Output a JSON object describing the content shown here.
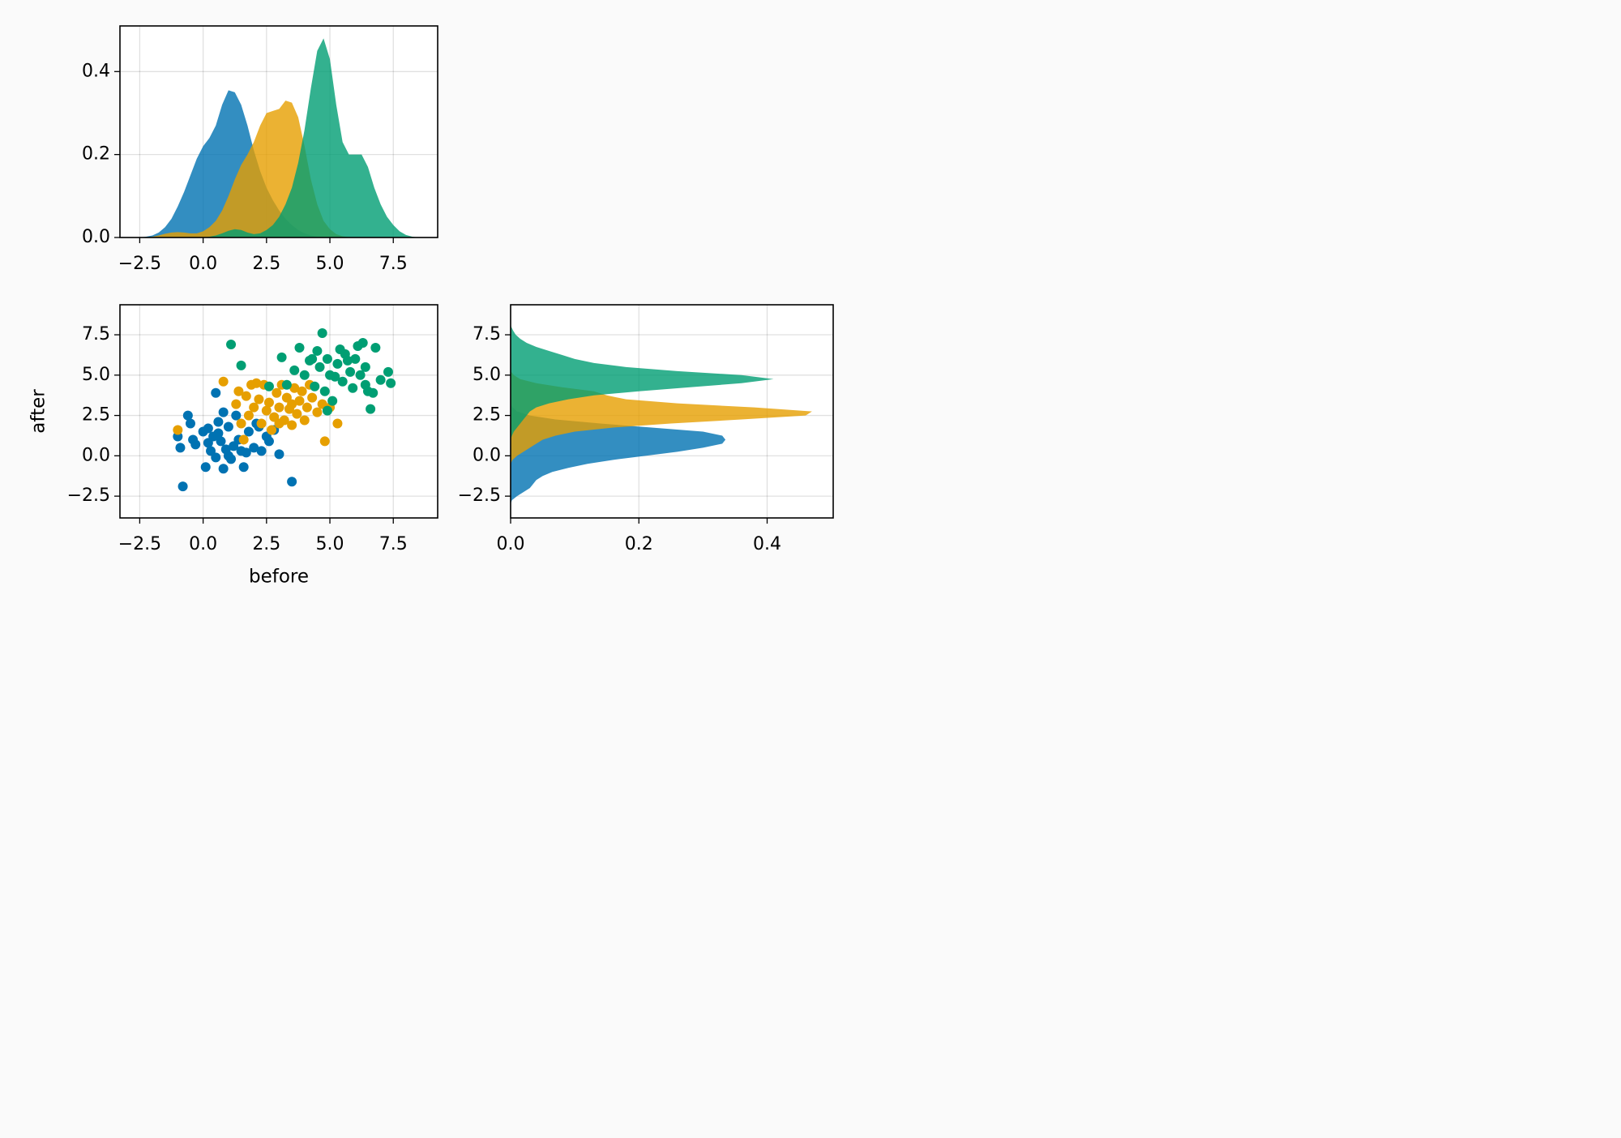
{
  "chart_data": [
    {
      "type": "density",
      "x": [
        -3,
        -2.75,
        -2.5,
        -2.25,
        -2,
        -1.75,
        -1.5,
        -1.25,
        -1,
        -0.75,
        -0.5,
        -0.25,
        0,
        0.25,
        0.5,
        0.75,
        1,
        1.25,
        1.5,
        1.75,
        2,
        2.25,
        2.5,
        2.75,
        3,
        3.25,
        3.5,
        3.75,
        4,
        4.25,
        4.5,
        4.75,
        5,
        5.25,
        5.5,
        5.75,
        6,
        6.25,
        6.5,
        6.75,
        7,
        7.25,
        7.5,
        7.75,
        8,
        8.25,
        8.5,
        8.75,
        9
      ],
      "series": [
        {
          "color": "#0072b2",
          "values": [
            0,
            0,
            0,
            0.002,
            0.005,
            0.012,
            0.025,
            0.045,
            0.075,
            0.11,
            0.15,
            0.19,
            0.22,
            0.24,
            0.27,
            0.32,
            0.355,
            0.35,
            0.32,
            0.27,
            0.21,
            0.16,
            0.12,
            0.09,
            0.065,
            0.045,
            0.03,
            0.018,
            0.01,
            0.005,
            0.002,
            0,
            0,
            0,
            0,
            0,
            0,
            0,
            0,
            0,
            0,
            0,
            0,
            0,
            0,
            0,
            0,
            0,
            0
          ]
        },
        {
          "color": "#e69f00",
          "values": [
            0,
            0,
            0,
            0,
            0.002,
            0.005,
            0.009,
            0.012,
            0.013,
            0.012,
            0.01,
            0.01,
            0.015,
            0.025,
            0.04,
            0.065,
            0.1,
            0.14,
            0.175,
            0.2,
            0.23,
            0.27,
            0.3,
            0.305,
            0.31,
            0.33,
            0.325,
            0.29,
            0.22,
            0.14,
            0.08,
            0.04,
            0.02,
            0.008,
            0.003,
            0.001,
            0,
            0,
            0,
            0,
            0,
            0,
            0,
            0,
            0,
            0,
            0,
            0,
            0
          ]
        },
        {
          "color": "#009e73",
          "values": [
            0,
            0,
            0,
            0,
            0,
            0,
            0,
            0,
            0,
            0,
            0,
            0,
            0,
            0.002,
            0.005,
            0.01,
            0.016,
            0.02,
            0.018,
            0.012,
            0.008,
            0.01,
            0.018,
            0.03,
            0.05,
            0.08,
            0.12,
            0.18,
            0.26,
            0.36,
            0.45,
            0.48,
            0.43,
            0.32,
            0.23,
            0.2,
            0.2,
            0.2,
            0.17,
            0.12,
            0.08,
            0.05,
            0.03,
            0.015,
            0.006,
            0.002,
            0,
            0,
            0
          ]
        }
      ],
      "xlim": [
        -3.28,
        9.25
      ],
      "ylim": [
        0,
        0.51
      ],
      "xticks": [
        {
          "value": -2.5,
          "label": "−2.5"
        },
        {
          "value": 0,
          "label": "0.0"
        },
        2.5,
        {
          "value": 5,
          "label": "5.0"
        },
        7.5
      ],
      "yticks": [
        {
          "value": 0,
          "label": "0.0"
        },
        0.2,
        0.4
      ],
      "grid": true
    },
    {
      "type": "scatter",
      "xlabel": "before",
      "ylabel": "after",
      "series": [
        {
          "color": "#0072b2",
          "x": [
            -1.0,
            -0.9,
            -0.6,
            -0.5,
            -0.3,
            0,
            0.2,
            0.3,
            0.4,
            0.5,
            0.6,
            0.7,
            0.8,
            0.9,
            1,
            1.1,
            1.2,
            1.3,
            1.4,
            1.6,
            1.7,
            1.8,
            2.0,
            2.1,
            2.3,
            2.5,
            2.6,
            2.8,
            3.0,
            3.5,
            -0.8,
            0.1,
            0.2,
            0.6,
            1.0,
            0.5,
            1.5,
            2.2,
            0.8,
            -0.4
          ],
          "y": [
            1.2,
            0.5,
            2.5,
            2.0,
            0.7,
            1.5,
            1.7,
            0.3,
            1.2,
            -0.1,
            2.1,
            0.9,
            -0.8,
            0.4,
            1.8,
            -0.2,
            0.6,
            2.5,
            1.0,
            -0.7,
            0.2,
            1.5,
            0.5,
            2.0,
            0.3,
            1.2,
            0.9,
            1.6,
            0.1,
            -1.6,
            -1.9,
            -0.7,
            0.8,
            1.4,
            0.0,
            3.9,
            0.3,
            1.8,
            2.7,
            1.0
          ]
        },
        {
          "color": "#e69f00",
          "x": [
            -1.0,
            0.8,
            1.3,
            1.4,
            1.6,
            1.8,
            1.9,
            2.0,
            2.2,
            2.3,
            2.4,
            2.5,
            2.6,
            2.8,
            2.9,
            3.0,
            3.1,
            3.2,
            3.3,
            3.4,
            3.5,
            3.6,
            3.7,
            3.8,
            3.9,
            4.0,
            4.1,
            4.3,
            4.5,
            4.7,
            4.8,
            5.0,
            5.3,
            1.5,
            2.7,
            3.5,
            4.2,
            2.1,
            1.7,
            3.0
          ],
          "y": [
            1.6,
            4.6,
            3.2,
            4.0,
            1.0,
            2.5,
            4.4,
            3.0,
            3.5,
            2.0,
            4.4,
            2.8,
            3.3,
            2.4,
            3.9,
            3.0,
            4.4,
            2.2,
            3.6,
            2.9,
            3.2,
            4.2,
            2.6,
            3.4,
            4.0,
            2.2,
            3.0,
            3.6,
            2.7,
            3.2,
            0.9,
            3.0,
            2.0,
            2.0,
            1.6,
            1.9,
            4.4,
            4.5,
            3.7,
            2.0
          ]
        },
        {
          "color": "#009e73",
          "x": [
            1.1,
            1.5,
            2.6,
            3.1,
            3.3,
            3.6,
            3.8,
            4.0,
            4.2,
            4.4,
            4.5,
            4.6,
            4.7,
            4.8,
            4.9,
            5.0,
            5.1,
            5.3,
            5.5,
            5.6,
            5.8,
            5.9,
            6.0,
            6.1,
            6.2,
            6.3,
            6.4,
            6.5,
            6.6,
            6.7,
            6.8,
            7.0,
            7.3,
            7.4,
            4.9,
            5.2,
            5.7,
            6.4,
            4.3,
            5.4
          ],
          "y": [
            6.9,
            5.6,
            4.3,
            6.1,
            4.4,
            5.3,
            6.7,
            5.0,
            5.9,
            4.3,
            6.5,
            5.5,
            7.6,
            4.0,
            6.0,
            5.0,
            3.4,
            5.7,
            4.6,
            6.3,
            5.2,
            4.2,
            6.0,
            6.8,
            5.0,
            7.0,
            5.5,
            4.0,
            2.9,
            3.9,
            6.7,
            4.7,
            5.2,
            4.5,
            2.8,
            4.9,
            5.9,
            4.4,
            6.0,
            6.6
          ]
        }
      ],
      "xlim": [
        -3.28,
        9.25
      ],
      "ylim": [
        -3.85,
        9.36
      ],
      "xticks": [
        {
          "value": -2.5,
          "label": "−2.5"
        },
        {
          "value": 0,
          "label": "0.0"
        },
        2.5,
        {
          "value": 5,
          "label": "5.0"
        },
        7.5
      ],
      "yticks": [
        {
          "value": -2.5,
          "label": "−2.5"
        },
        {
          "value": 0,
          "label": "0.0"
        },
        2.5,
        {
          "value": 5,
          "label": "5.0"
        },
        7.5
      ],
      "grid": true
    },
    {
      "type": "density_h",
      "y": [
        -3,
        -2.75,
        -2.5,
        -2.25,
        -2,
        -1.75,
        -1.5,
        -1.25,
        -1,
        -0.75,
        -0.5,
        -0.25,
        0,
        0.25,
        0.5,
        0.75,
        1,
        1.25,
        1.5,
        1.75,
        2,
        2.25,
        2.5,
        2.75,
        3,
        3.25,
        3.5,
        3.75,
        4,
        4.25,
        4.5,
        4.75,
        5,
        5.25,
        5.5,
        5.75,
        6,
        6.25,
        6.5,
        6.75,
        7,
        7.25,
        7.5,
        7.75,
        8,
        8.25,
        8.5,
        8.75,
        9
      ],
      "series": [
        {
          "color": "#0072b2",
          "values": [
            0,
            0.002,
            0.01,
            0.02,
            0.03,
            0.035,
            0.04,
            0.05,
            0.065,
            0.09,
            0.12,
            0.16,
            0.21,
            0.26,
            0.3,
            0.33,
            0.335,
            0.33,
            0.3,
            0.22,
            0.14,
            0.07,
            0.03,
            0.01,
            0.003,
            0,
            0,
            0,
            0,
            0,
            0,
            0,
            0,
            0,
            0,
            0,
            0,
            0,
            0,
            0,
            0,
            0,
            0,
            0,
            0,
            0,
            0,
            0,
            0
          ]
        },
        {
          "color": "#e69f00",
          "values": [
            0,
            0,
            0,
            0,
            0,
            0,
            0,
            0,
            0,
            0,
            0,
            0.003,
            0.01,
            0.02,
            0.03,
            0.04,
            0.05,
            0.07,
            0.1,
            0.16,
            0.25,
            0.36,
            0.46,
            0.47,
            0.38,
            0.26,
            0.18,
            0.15,
            0.13,
            0.08,
            0.04,
            0.015,
            0.005,
            0,
            0,
            0,
            0,
            0,
            0,
            0,
            0,
            0,
            0,
            0,
            0,
            0,
            0,
            0,
            0
          ]
        },
        {
          "color": "#009e73",
          "values": [
            0,
            0,
            0,
            0,
            0,
            0,
            0,
            0,
            0,
            0,
            0,
            0,
            0,
            0,
            0,
            0,
            0,
            0.002,
            0.005,
            0.01,
            0.015,
            0.02,
            0.025,
            0.03,
            0.04,
            0.06,
            0.09,
            0.13,
            0.2,
            0.28,
            0.36,
            0.41,
            0.36,
            0.26,
            0.18,
            0.13,
            0.1,
            0.08,
            0.06,
            0.04,
            0.025,
            0.015,
            0.008,
            0.004,
            0.001,
            0,
            0,
            0,
            0
          ]
        }
      ],
      "xlim": [
        0,
        0.503
      ],
      "ylim": [
        -3.85,
        9.36
      ],
      "xticks": [
        {
          "value": 0,
          "label": "0.0"
        },
        0.2,
        0.4
      ],
      "yticks": [
        {
          "value": -2.5,
          "label": "−2.5"
        },
        {
          "value": 0,
          "label": "0.0"
        },
        2.5,
        {
          "value": 5,
          "label": "5.0"
        },
        7.5
      ],
      "grid": true
    }
  ]
}
